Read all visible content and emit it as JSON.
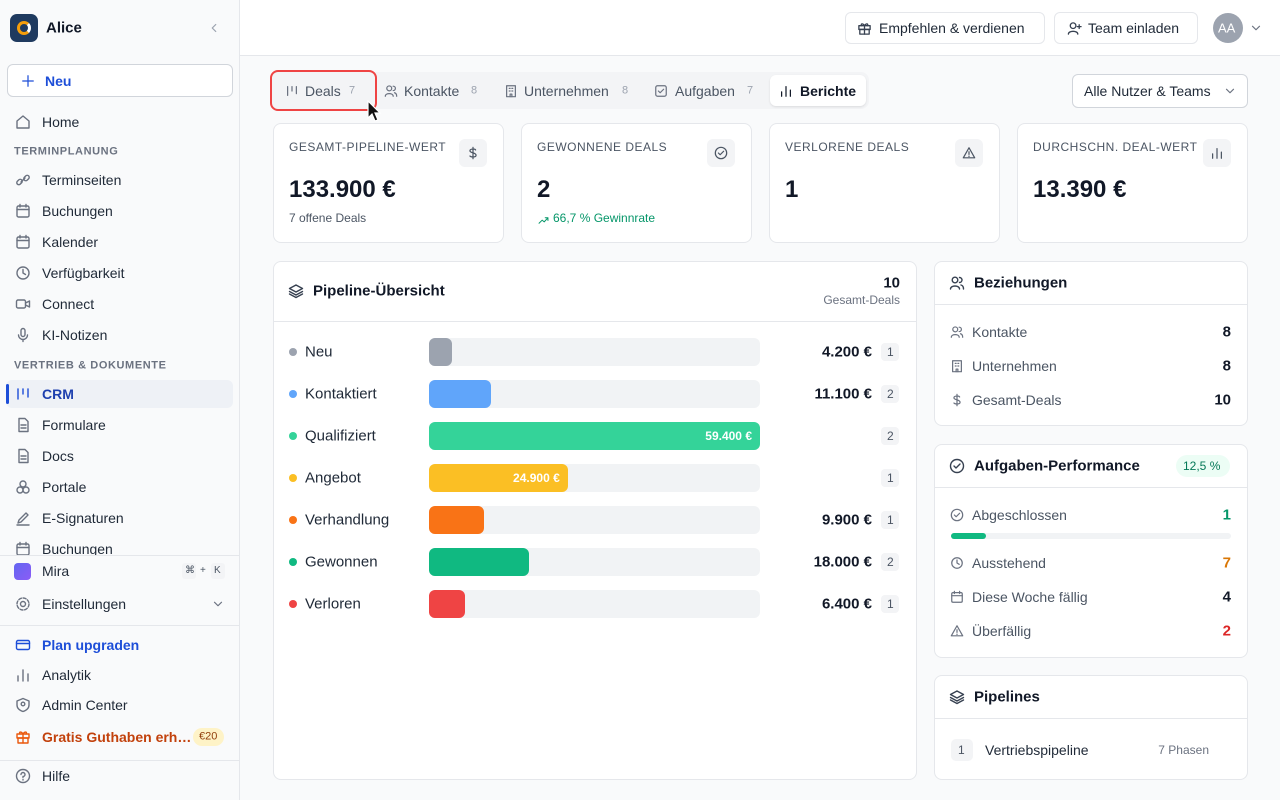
{
  "sidebar": {
    "workspace": "Alice",
    "new_button": "Neu",
    "home": "Home",
    "sections": [
      {
        "title": "TERMINPLANUNG",
        "items": [
          "Terminseiten",
          "Buchungen",
          "Kalender",
          "Verfügbarkeit",
          "Connect",
          "KI-Notizen"
        ]
      },
      {
        "title": "VERTRIEB & DOKUMENTE",
        "items": [
          "CRM",
          "Formulare",
          "Docs",
          "Portale",
          "E-Signaturen",
          "Buchungen"
        ]
      }
    ],
    "mira": {
      "label": "Mira",
      "shortcut": [
        "⌘",
        "+",
        "K"
      ]
    },
    "settings": "Einstellungen",
    "footer": [
      "Plan upgraden",
      "Analytik",
      "Admin Center"
    ],
    "credit": {
      "label": "Gratis Guthaben erh…",
      "badge": "€20"
    },
    "help": "Hilfe"
  },
  "topbar": {
    "refer": "Empfehlen & verdienen",
    "invite": "Team einladen",
    "avatar": "AA"
  },
  "tabs": [
    {
      "label": "Deals",
      "count": 7
    },
    {
      "label": "Kontakte",
      "count": 8
    },
    {
      "label": "Unternehmen",
      "count": 8
    },
    {
      "label": "Aufgaben",
      "count": 7
    },
    {
      "label": "Berichte"
    }
  ],
  "filter": "Alle Nutzer & Teams",
  "stats": [
    {
      "label": "GESAMT-PIPELINE-WERT",
      "value": "133.900 €",
      "note": "7 offene Deals"
    },
    {
      "label": "GEWONNENE DEALS",
      "value": 2,
      "note": "66,7 % Gewinnrate"
    },
    {
      "label": "VERLORENE DEALS",
      "value": 1
    },
    {
      "label": "DURCHSCHN. DEAL-WERT",
      "value": "13.390 €"
    }
  ],
  "pipeline": {
    "title": "Pipeline-Übersicht",
    "total": 10,
    "total_label": "Gesamt-Deals",
    "stages": [
      {
        "name": "Neu",
        "value": 4200,
        "value_label": "4.200 €",
        "count": 1,
        "color": "#9ca3af"
      },
      {
        "name": "Kontaktiert",
        "value": 11100,
        "value_label": "11.100 €",
        "count": 2,
        "color": "#60a5fa"
      },
      {
        "name": "Qualifiziert",
        "value": 59400,
        "value_label": "59.400 €",
        "count": 2,
        "color": "#34d399"
      },
      {
        "name": "Angebot",
        "value": 24900,
        "value_label": "24.900 €",
        "count": 1,
        "color": "#fbbf24"
      },
      {
        "name": "Verhandlung",
        "value": 9900,
        "value_label": "9.900 €",
        "count": 1,
        "color": "#f97316"
      },
      {
        "name": "Gewonnen",
        "value": 18000,
        "value_label": "18.000 €",
        "count": 2,
        "color": "#10b981"
      },
      {
        "name": "Verloren",
        "value": 6400,
        "value_label": "6.400 €",
        "count": 1,
        "color": "#ef4444"
      }
    ]
  },
  "relations": {
    "title": "Beziehungen",
    "rows": [
      {
        "label": "Kontakte",
        "value": 8
      },
      {
        "label": "Unternehmen",
        "value": 8
      },
      {
        "label": "Gesamt-Deals",
        "value": 10
      }
    ]
  },
  "tasks": {
    "title": "Aufgaben-Performance",
    "rate": {
      "value": 12.5,
      "label": "12,5 %"
    },
    "rows": [
      {
        "label": "Abgeschlossen",
        "value": 1,
        "color": "#059669"
      },
      {
        "label": "Ausstehend",
        "value": 7,
        "color": "#d97706"
      },
      {
        "label": "Diese Woche fällig",
        "value": 4
      },
      {
        "label": "Überfällig",
        "value": 2,
        "color": "#dc2626"
      }
    ]
  },
  "pipelines": {
    "title": "Pipelines",
    "rows": [
      {
        "index": 1,
        "name": "Vertriebspipeline",
        "phases": "7 Phasen"
      }
    ]
  }
}
